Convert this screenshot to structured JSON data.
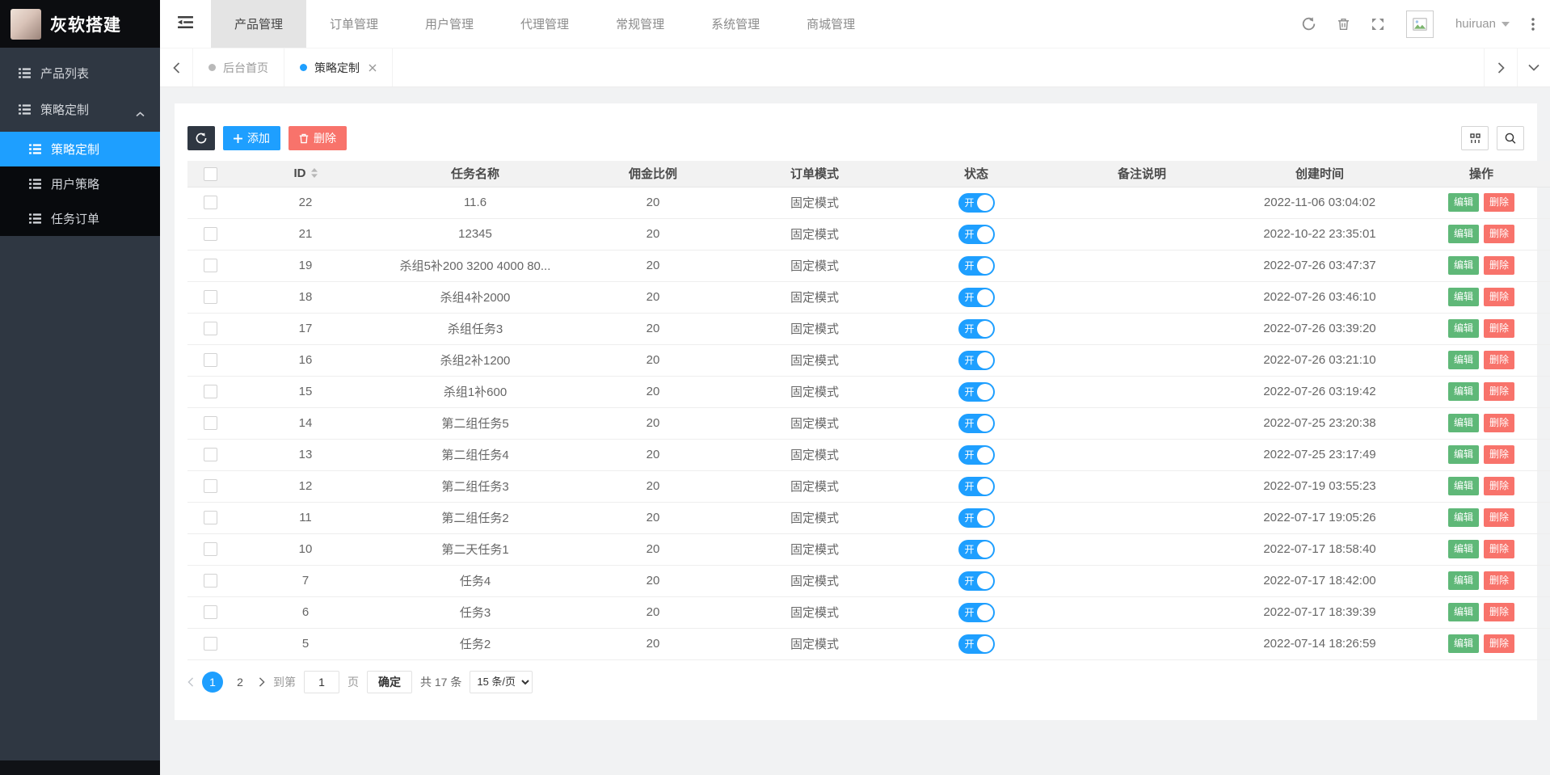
{
  "brand": {
    "title": "灰软搭建"
  },
  "user": {
    "name": "huiruan"
  },
  "sidebar": {
    "items": [
      {
        "label": "产品列表"
      },
      {
        "label": "策略定制"
      }
    ],
    "submenu": [
      {
        "label": "策略定制",
        "active": true
      },
      {
        "label": "用户策略",
        "active": false
      },
      {
        "label": "任务订单",
        "active": false
      }
    ]
  },
  "topnav": {
    "tabs": [
      {
        "label": "产品管理",
        "active": true
      },
      {
        "label": "订单管理",
        "active": false
      },
      {
        "label": "用户管理",
        "active": false
      },
      {
        "label": "代理管理",
        "active": false
      },
      {
        "label": "常规管理",
        "active": false
      },
      {
        "label": "系统管理",
        "active": false
      },
      {
        "label": "商城管理",
        "active": false
      }
    ]
  },
  "tabbar": {
    "tabs": [
      {
        "label": "后台首页",
        "active": false,
        "closable": false
      },
      {
        "label": "策略定制",
        "active": true,
        "closable": true
      }
    ]
  },
  "toolbar": {
    "add_label": "添加",
    "delete_label": "删除"
  },
  "table": {
    "headers": [
      "ID",
      "任务名称",
      "佣金比例",
      "订单模式",
      "状态",
      "备注说明",
      "创建时间",
      "操作"
    ],
    "switch_on_label": "开",
    "edit_label": "编辑",
    "row_delete_label": "删除",
    "rows": [
      {
        "id": "22",
        "name": "11.6",
        "commission": "20",
        "mode": "固定模式",
        "status": "on",
        "remark": "",
        "created": "2022-11-06 03:04:02"
      },
      {
        "id": "21",
        "name": "12345",
        "commission": "20",
        "mode": "固定模式",
        "status": "on",
        "remark": "",
        "created": "2022-10-22 23:35:01"
      },
      {
        "id": "19",
        "name": "杀组5补200 3200 4000 80...",
        "commission": "20",
        "mode": "固定模式",
        "status": "on",
        "remark": "",
        "created": "2022-07-26 03:47:37"
      },
      {
        "id": "18",
        "name": "杀组4补2000",
        "commission": "20",
        "mode": "固定模式",
        "status": "on",
        "remark": "",
        "created": "2022-07-26 03:46:10"
      },
      {
        "id": "17",
        "name": "杀组任务3",
        "commission": "20",
        "mode": "固定模式",
        "status": "on",
        "remark": "",
        "created": "2022-07-26 03:39:20"
      },
      {
        "id": "16",
        "name": "杀组2补1200",
        "commission": "20",
        "mode": "固定模式",
        "status": "on",
        "remark": "",
        "created": "2022-07-26 03:21:10"
      },
      {
        "id": "15",
        "name": "杀组1补600",
        "commission": "20",
        "mode": "固定模式",
        "status": "on",
        "remark": "",
        "created": "2022-07-26 03:19:42"
      },
      {
        "id": "14",
        "name": "第二组任务5",
        "commission": "20",
        "mode": "固定模式",
        "status": "on",
        "remark": "",
        "created": "2022-07-25 23:20:38"
      },
      {
        "id": "13",
        "name": "第二组任务4",
        "commission": "20",
        "mode": "固定模式",
        "status": "on",
        "remark": "",
        "created": "2022-07-25 23:17:49"
      },
      {
        "id": "12",
        "name": "第二组任务3",
        "commission": "20",
        "mode": "固定模式",
        "status": "on",
        "remark": "",
        "created": "2022-07-19 03:55:23"
      },
      {
        "id": "11",
        "name": "第二组任务2",
        "commission": "20",
        "mode": "固定模式",
        "status": "on",
        "remark": "",
        "created": "2022-07-17 19:05:26"
      },
      {
        "id": "10",
        "name": "第二天任务1",
        "commission": "20",
        "mode": "固定模式",
        "status": "on",
        "remark": "",
        "created": "2022-07-17 18:58:40"
      },
      {
        "id": "7",
        "name": "任务4",
        "commission": "20",
        "mode": "固定模式",
        "status": "on",
        "remark": "",
        "created": "2022-07-17 18:42:00"
      },
      {
        "id": "6",
        "name": "任务3",
        "commission": "20",
        "mode": "固定模式",
        "status": "on",
        "remark": "",
        "created": "2022-07-17 18:39:39"
      },
      {
        "id": "5",
        "name": "任务2",
        "commission": "20",
        "mode": "固定模式",
        "status": "on",
        "remark": "",
        "created": "2022-07-14 18:26:59"
      }
    ]
  },
  "pagination": {
    "pages": [
      {
        "label": "1",
        "active": true
      },
      {
        "label": "2",
        "active": false
      }
    ],
    "goto_prefix": "到第",
    "goto_value": "1",
    "goto_suffix": "页",
    "confirm_label": "确定",
    "total_label": "共 17 条",
    "page_size_value": "15 条/页"
  },
  "colors": {
    "primary": "#1E9FFF",
    "success": "#5FB878",
    "danger": "#F8736B",
    "sidebar": "#2F3742",
    "sidebar_submenu": "#080A0D"
  }
}
